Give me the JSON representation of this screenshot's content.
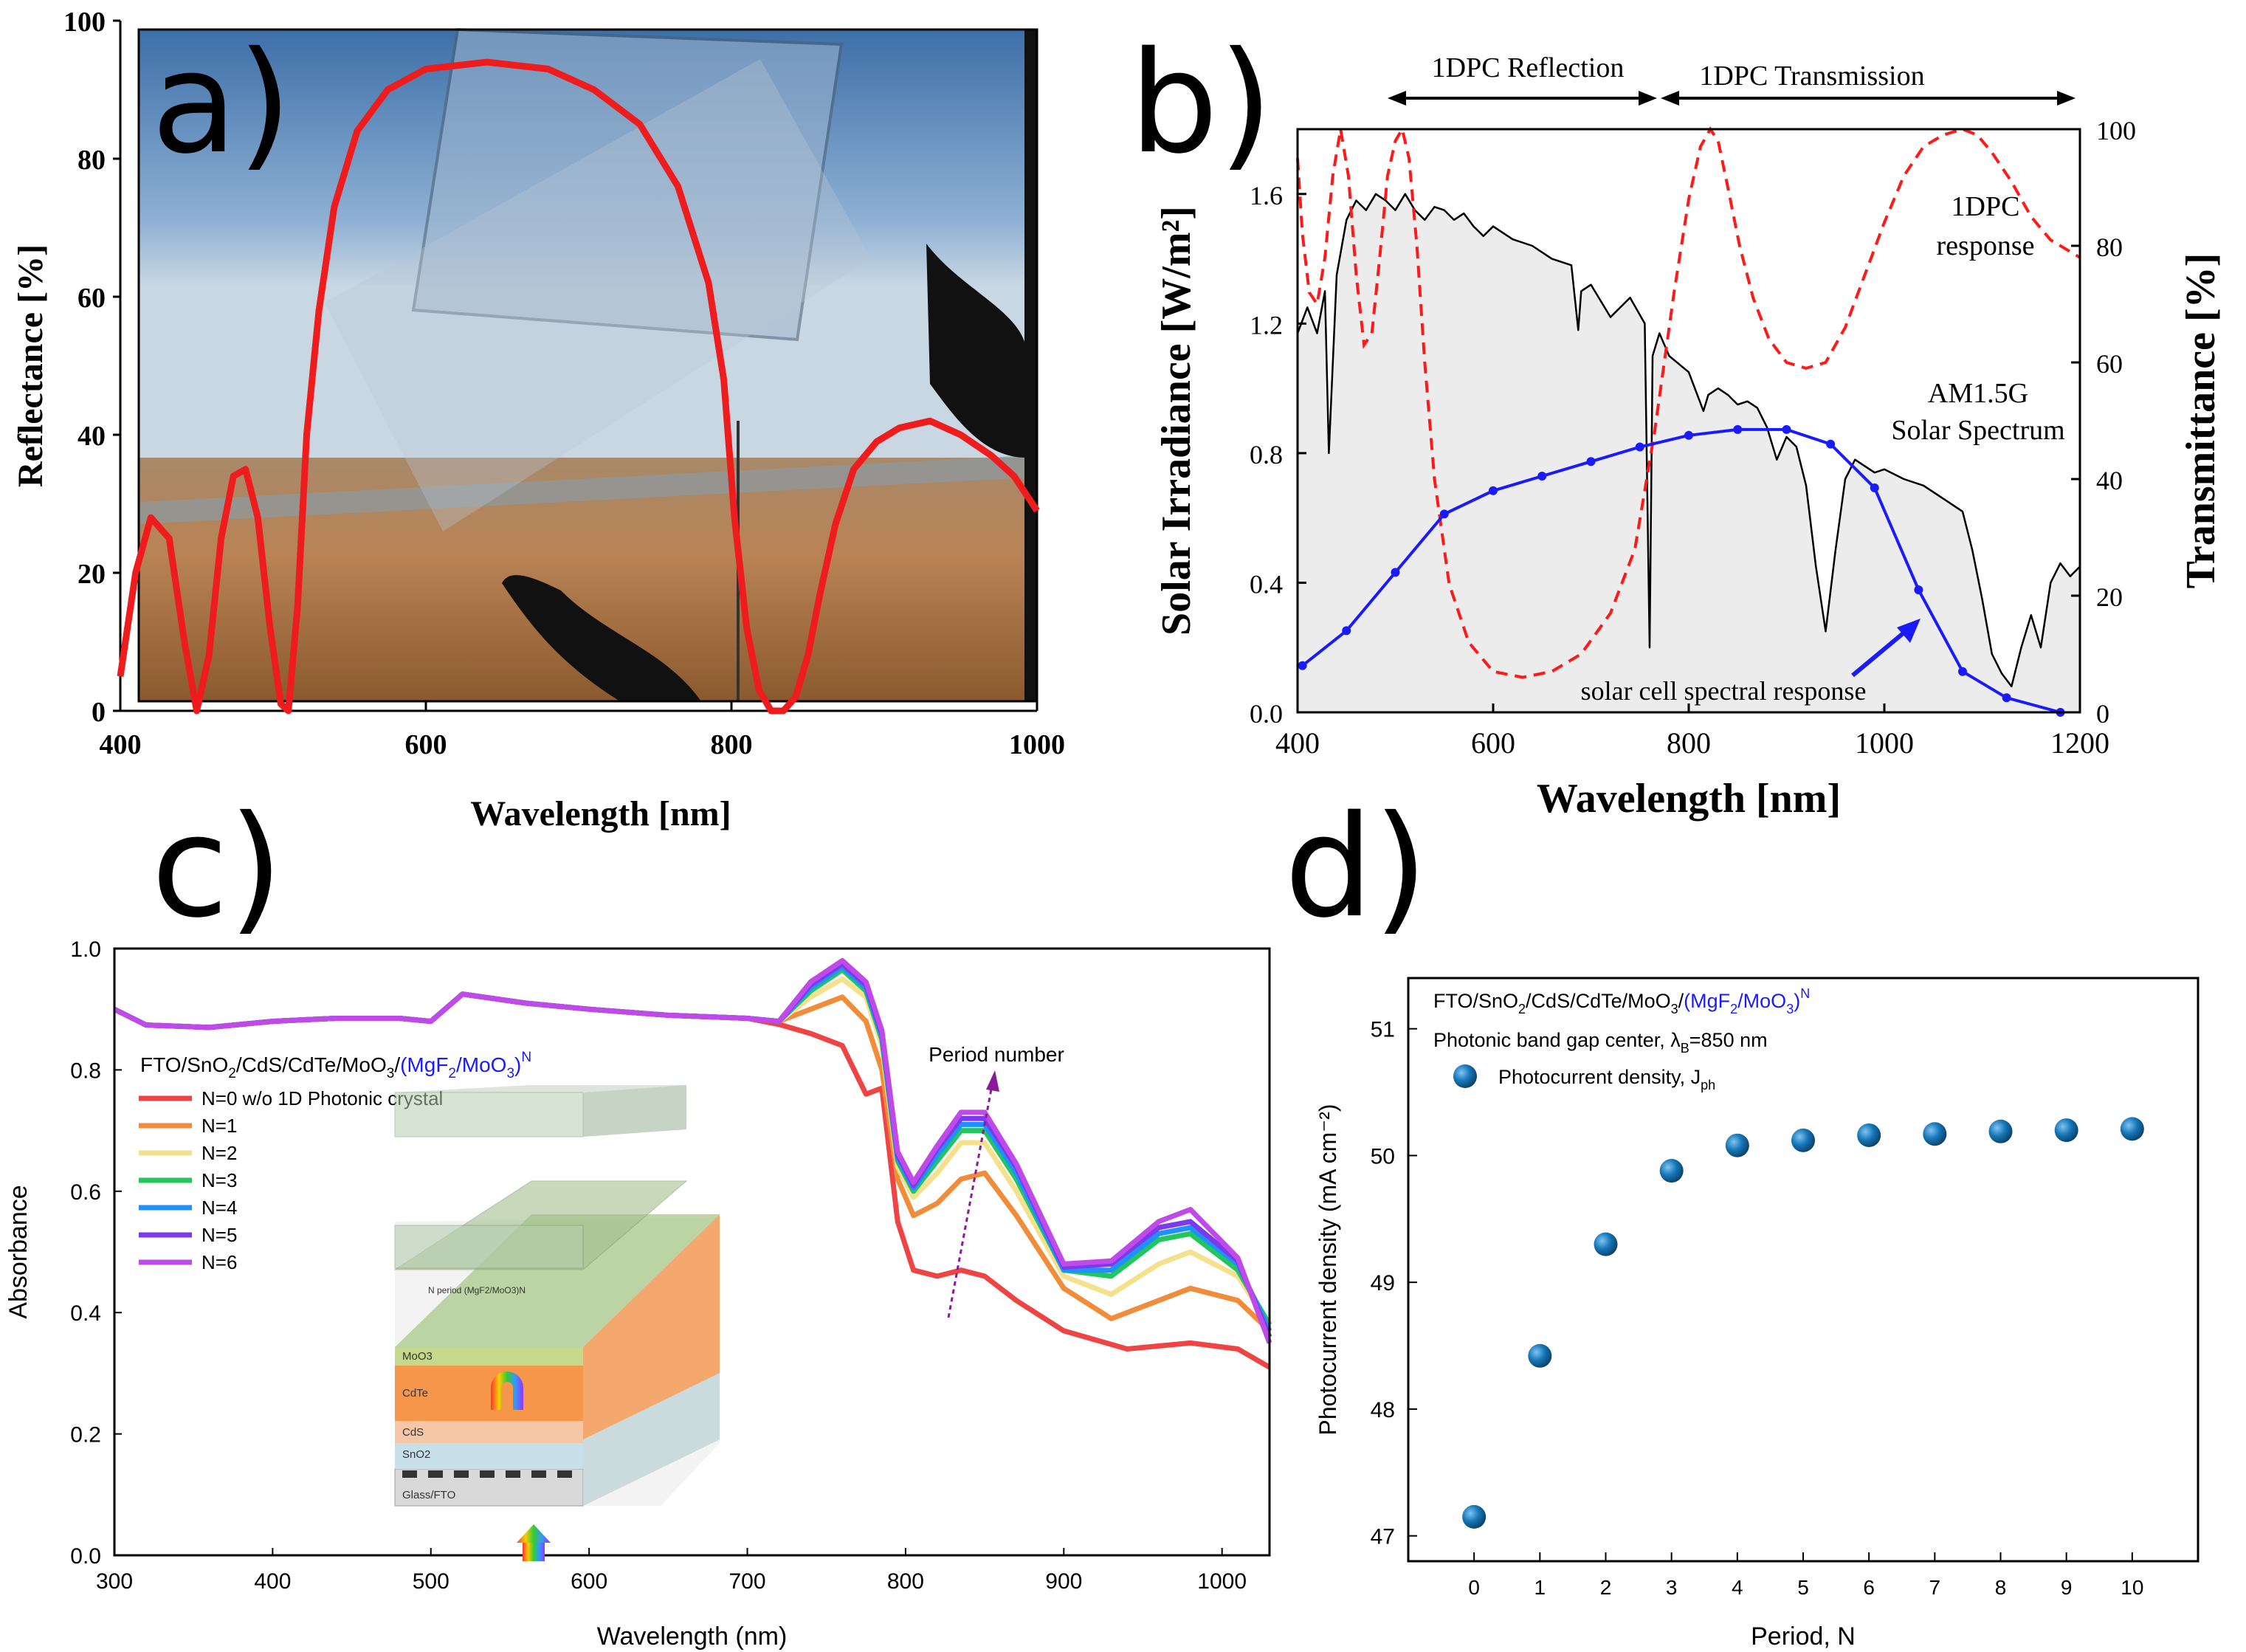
{
  "panels": {
    "a": {
      "label": "a)"
    },
    "b": {
      "label": "b)"
    },
    "c": {
      "label": "c)"
    },
    "d": {
      "label": "d)"
    }
  },
  "colors": {
    "red": "#ee1c1c",
    "blue": "#1a1aff",
    "dashed_red": "#ff1a1a",
    "marker_blue": "#1677b8",
    "photo_sky": "#5b89b8",
    "photo_ground": "#9b6a3c"
  },
  "chart_data": [
    {
      "id": "a",
      "type": "line",
      "title": "",
      "xlabel": "Wavelength [nm]",
      "ylabel": "Reflectance [%]",
      "xlim": [
        400,
        1000
      ],
      "ylim": [
        0,
        100
      ],
      "xticks": [
        "400",
        "600",
        "800",
        "1000"
      ],
      "yticks": [
        "0",
        "20",
        "40",
        "60",
        "80",
        "100"
      ],
      "background_image": "photo of transparent glass panel held against sky and plain",
      "series": [
        {
          "name": "Reflectance",
          "color": "#ee1c1c",
          "x": [
            400,
            410,
            420,
            432,
            442,
            450,
            458,
            466,
            474,
            482,
            490,
            498,
            505,
            510,
            516,
            522,
            530,
            540,
            555,
            575,
            600,
            640,
            680,
            710,
            740,
            765,
            785,
            795,
            802,
            810,
            818,
            826,
            834,
            842,
            850,
            858,
            868,
            880,
            895,
            910,
            930,
            950,
            970,
            985,
            1000
          ],
          "y": [
            5,
            20,
            28,
            25,
            10,
            0,
            8,
            25,
            34,
            35,
            28,
            12,
            1,
            0,
            15,
            40,
            58,
            73,
            84,
            90,
            93,
            94,
            93,
            90,
            85,
            76,
            62,
            48,
            28,
            12,
            3,
            0,
            0,
            2,
            8,
            17,
            27,
            35,
            39,
            41,
            42,
            40,
            37,
            34,
            29
          ]
        }
      ]
    },
    {
      "id": "b",
      "type": "line",
      "xlabel": "Wavelength [nm]",
      "ylabel": "Solar Irradiance [W/m²]",
      "ylabel_right": "Transmittance [%]",
      "xlim": [
        400,
        1200
      ],
      "ylim": [
        0,
        1.8
      ],
      "ylim_right": [
        0,
        100
      ],
      "xticks": [
        "400",
        "600",
        "800",
        "1000",
        "1200"
      ],
      "yticks": [
        "0.0",
        "0.4",
        "0.8",
        "1.2",
        "1.6"
      ],
      "yticks_right": [
        "0",
        "20",
        "40",
        "60",
        "80",
        "100"
      ],
      "annotations": {
        "reflection_arrow": "1DPC Reflection",
        "transmission_arrow": "1DPC Transmission",
        "response_line1": "1DPC",
        "response_line2": "response",
        "am_line1": "AM1.5G",
        "am_line2": "Solar Spectrum",
        "cell_response": "solar cell spectral response"
      },
      "series": [
        {
          "name": "AM1.5G Solar Spectrum",
          "color": "#000000",
          "axis": "left",
          "x": [
            400,
            410,
            420,
            428,
            432,
            440,
            450,
            460,
            470,
            480,
            490,
            500,
            510,
            520,
            530,
            540,
            550,
            560,
            570,
            580,
            590,
            600,
            620,
            640,
            660,
            680,
            687,
            690,
            700,
            720,
            740,
            755,
            760,
            763,
            770,
            780,
            800,
            815,
            820,
            830,
            840,
            850,
            860,
            870,
            880,
            890,
            900,
            910,
            920,
            930,
            940,
            950,
            960,
            970,
            980,
            990,
            1000,
            1020,
            1040,
            1060,
            1080,
            1090,
            1100,
            1110,
            1120,
            1130,
            1140,
            1150,
            1160,
            1170,
            1180,
            1190,
            1200
          ],
          "y": [
            1.17,
            1.25,
            1.17,
            1.3,
            0.8,
            1.35,
            1.52,
            1.58,
            1.55,
            1.6,
            1.58,
            1.55,
            1.6,
            1.55,
            1.52,
            1.56,
            1.55,
            1.52,
            1.54,
            1.5,
            1.47,
            1.5,
            1.46,
            1.44,
            1.4,
            1.38,
            1.18,
            1.3,
            1.32,
            1.22,
            1.28,
            1.2,
            0.2,
            1.1,
            1.17,
            1.1,
            1.05,
            0.93,
            0.98,
            1.0,
            0.98,
            0.95,
            0.96,
            0.94,
            0.88,
            0.78,
            0.85,
            0.82,
            0.7,
            0.45,
            0.25,
            0.5,
            0.72,
            0.78,
            0.76,
            0.74,
            0.75,
            0.72,
            0.7,
            0.66,
            0.62,
            0.5,
            0.35,
            0.18,
            0.12,
            0.08,
            0.2,
            0.3,
            0.2,
            0.4,
            0.46,
            0.42,
            0.45
          ]
        },
        {
          "name": "1DPC response",
          "color": "#ff1a1a",
          "style": "dashed",
          "axis": "right",
          "x": [
            400,
            405,
            412,
            420,
            428,
            436,
            444,
            452,
            460,
            468,
            476,
            484,
            492,
            500,
            507,
            514,
            522,
            530,
            540,
            555,
            575,
            600,
            630,
            660,
            690,
            720,
            745,
            765,
            785,
            800,
            812,
            822,
            830,
            840,
            852,
            866,
            882,
            900,
            920,
            940,
            960,
            980,
            1000,
            1020,
            1040,
            1060,
            1080,
            1095,
            1110,
            1130,
            1150,
            1170,
            1190,
            1200
          ],
          "y": [
            95,
            82,
            72,
            70,
            78,
            92,
            100,
            92,
            75,
            63,
            65,
            78,
            92,
            98,
            100,
            95,
            80,
            60,
            40,
            22,
            12,
            7,
            6,
            7,
            10,
            17,
            28,
            48,
            72,
            88,
            97,
            100,
            98,
            90,
            80,
            71,
            64,
            60,
            59,
            60,
            66,
            75,
            84,
            92,
            97,
            99,
            100,
            99,
            96,
            91,
            85,
            81,
            79,
            78
          ]
        },
        {
          "name": "solar cell spectral response",
          "color": "#1a1aff",
          "axis": "right",
          "markers": true,
          "x": [
            405,
            450,
            500,
            550,
            600,
            650,
            700,
            750,
            800,
            850,
            900,
            945,
            990,
            1035,
            1080,
            1125,
            1180
          ],
          "y": [
            8,
            14,
            24,
            34,
            38,
            40.5,
            43,
            45.5,
            47.5,
            48.5,
            48.5,
            46,
            38.5,
            21,
            7,
            2.5,
            0
          ]
        }
      ]
    },
    {
      "id": "c",
      "type": "line",
      "xlabel": "Wavelength (nm)",
      "ylabel": "Absorbance",
      "xlim": [
        300,
        1030
      ],
      "ylim": [
        0,
        1.0
      ],
      "xticks": [
        "300",
        "400",
        "500",
        "600",
        "700",
        "800",
        "900",
        "1000"
      ],
      "yticks": [
        "0.0",
        "0.2",
        "0.4",
        "0.6",
        "0.8",
        "1.0"
      ],
      "structure": "FTO/SnO2/CdS/CdTe/MoO3/(MgF2/MoO3)N",
      "struct_black": "FTO/SnO",
      "struct_sub1": "2",
      "struct_mid": "/CdS/CdTe/MoO",
      "struct_sub2": "3",
      "struct_slash": "/",
      "struct_blue_a": "(MgF",
      "struct_sub3": "2",
      "struct_blue_b": "/MoO",
      "struct_sub4": "3",
      "struct_blue_c": ")",
      "struct_sup": "N",
      "period_label": "Period number",
      "legend": [
        "N=0 w/o 1D Photonic crystal",
        "N=1",
        "N=2",
        "N=3",
        "N=4",
        "N=5",
        "N=6"
      ],
      "inset_labels": {
        "moo3": "MoO3",
        "cdte": "CdTe",
        "cds": "CdS",
        "sno2": "SnO2",
        "glass": "Glass/FTO",
        "nperiod": "N period (MgF2/MoO3)N"
      },
      "series": [
        {
          "name": "N=0",
          "color": "#ef4444",
          "x": [
            300,
            320,
            360,
            400,
            440,
            480,
            500,
            520,
            560,
            600,
            650,
            700,
            720,
            740,
            760,
            775,
            785,
            795,
            805,
            820,
            835,
            850,
            870,
            900,
            940,
            980,
            1010,
            1030
          ],
          "y": [
            0.9,
            0.874,
            0.87,
            0.88,
            0.885,
            0.885,
            0.88,
            0.925,
            0.91,
            0.9,
            0.89,
            0.885,
            0.875,
            0.86,
            0.84,
            0.76,
            0.77,
            0.55,
            0.47,
            0.46,
            0.47,
            0.46,
            0.42,
            0.37,
            0.34,
            0.35,
            0.34,
            0.31
          ]
        },
        {
          "name": "N=1",
          "color": "#f18c3a",
          "x": [
            300,
            320,
            360,
            400,
            440,
            480,
            500,
            520,
            560,
            600,
            650,
            700,
            720,
            740,
            760,
            775,
            785,
            795,
            805,
            820,
            835,
            850,
            870,
            900,
            930,
            960,
            980,
            1010,
            1030
          ],
          "y": [
            0.9,
            0.874,
            0.87,
            0.88,
            0.885,
            0.885,
            0.88,
            0.925,
            0.91,
            0.9,
            0.89,
            0.885,
            0.88,
            0.9,
            0.92,
            0.88,
            0.8,
            0.62,
            0.56,
            0.58,
            0.62,
            0.63,
            0.56,
            0.44,
            0.39,
            0.42,
            0.44,
            0.42,
            0.37
          ]
        },
        {
          "name": "N=2",
          "color": "#f5e08c",
          "x": [
            300,
            320,
            360,
            400,
            440,
            480,
            500,
            520,
            560,
            600,
            650,
            700,
            720,
            740,
            760,
            775,
            785,
            795,
            805,
            820,
            835,
            850,
            870,
            900,
            930,
            960,
            980,
            1010,
            1030
          ],
          "y": [
            0.9,
            0.874,
            0.87,
            0.88,
            0.885,
            0.885,
            0.88,
            0.925,
            0.91,
            0.9,
            0.89,
            0.885,
            0.88,
            0.92,
            0.95,
            0.92,
            0.84,
            0.64,
            0.59,
            0.63,
            0.68,
            0.68,
            0.6,
            0.46,
            0.43,
            0.48,
            0.5,
            0.46,
            0.38
          ]
        },
        {
          "name": "N=3",
          "color": "#22c55e",
          "x": [
            300,
            320,
            360,
            400,
            440,
            480,
            500,
            520,
            560,
            600,
            650,
            700,
            720,
            740,
            760,
            775,
            785,
            795,
            805,
            820,
            835,
            850,
            870,
            900,
            930,
            960,
            980,
            1010,
            1030
          ],
          "y": [
            0.9,
            0.874,
            0.87,
            0.88,
            0.885,
            0.885,
            0.88,
            0.925,
            0.91,
            0.9,
            0.89,
            0.885,
            0.88,
            0.93,
            0.965,
            0.93,
            0.85,
            0.65,
            0.6,
            0.65,
            0.7,
            0.7,
            0.62,
            0.47,
            0.46,
            0.52,
            0.53,
            0.47,
            0.38
          ]
        },
        {
          "name": "N=4",
          "color": "#1e90ff",
          "x": [
            300,
            320,
            360,
            400,
            440,
            480,
            500,
            520,
            560,
            600,
            650,
            700,
            720,
            740,
            760,
            775,
            785,
            795,
            805,
            820,
            835,
            850,
            870,
            900,
            930,
            960,
            980,
            1010,
            1030
          ],
          "y": [
            0.9,
            0.874,
            0.87,
            0.88,
            0.885,
            0.885,
            0.88,
            0.925,
            0.91,
            0.9,
            0.89,
            0.885,
            0.88,
            0.935,
            0.97,
            0.935,
            0.855,
            0.655,
            0.605,
            0.66,
            0.71,
            0.71,
            0.63,
            0.47,
            0.47,
            0.53,
            0.54,
            0.48,
            0.37
          ]
        },
        {
          "name": "N=5",
          "color": "#7c3aed",
          "x": [
            300,
            320,
            360,
            400,
            440,
            480,
            500,
            520,
            560,
            600,
            650,
            700,
            720,
            740,
            760,
            775,
            785,
            795,
            805,
            820,
            835,
            850,
            870,
            900,
            930,
            960,
            980,
            1010,
            1030
          ],
          "y": [
            0.9,
            0.874,
            0.87,
            0.88,
            0.885,
            0.885,
            0.88,
            0.925,
            0.91,
            0.9,
            0.89,
            0.885,
            0.88,
            0.94,
            0.975,
            0.94,
            0.86,
            0.66,
            0.61,
            0.67,
            0.72,
            0.72,
            0.64,
            0.475,
            0.48,
            0.54,
            0.55,
            0.485,
            0.36
          ]
        },
        {
          "name": "N=6",
          "color": "#c04ae8",
          "x": [
            300,
            320,
            360,
            400,
            440,
            480,
            500,
            520,
            560,
            600,
            650,
            700,
            720,
            740,
            760,
            775,
            785,
            795,
            805,
            820,
            835,
            850,
            870,
            900,
            930,
            960,
            980,
            1010,
            1030
          ],
          "y": [
            0.9,
            0.874,
            0.87,
            0.88,
            0.885,
            0.885,
            0.88,
            0.925,
            0.91,
            0.9,
            0.89,
            0.885,
            0.88,
            0.945,
            0.98,
            0.945,
            0.865,
            0.665,
            0.615,
            0.675,
            0.73,
            0.73,
            0.645,
            0.48,
            0.485,
            0.55,
            0.57,
            0.49,
            0.35
          ]
        }
      ]
    },
    {
      "id": "d",
      "type": "scatter",
      "xlabel": "Period, N",
      "ylabel": "Photocurrent density (mA cm⁻²)",
      "xlim": [
        -1,
        11
      ],
      "ylim": [
        46.8,
        51.4
      ],
      "xticks": [
        "0",
        "1",
        "2",
        "3",
        "4",
        "5",
        "6",
        "7",
        "8",
        "9",
        "10"
      ],
      "yticks": [
        "47",
        "48",
        "49",
        "50",
        "51"
      ],
      "struct_black": "FTO/SnO",
      "struct_sub1": "2",
      "struct_mid": "/CdS/CdTe/MoO",
      "struct_sub2": "3",
      "struct_slash": "/",
      "struct_blue_a": "(MgF",
      "struct_sub3": "2",
      "struct_blue_b": "/MoO",
      "struct_sub4": "3",
      "struct_blue_c": ")",
      "struct_sup": "N",
      "pbg_a": "Photonic band gap center, λ",
      "pbg_sub": "B",
      "pbg_b": "=850 nm",
      "legend_a": "Photocurrent density, J",
      "legend_sub": "ph",
      "series": [
        {
          "name": "Photocurrent density, Jph",
          "color": "#1677b8",
          "x": [
            0,
            1,
            2,
            3,
            4,
            5,
            6,
            7,
            8,
            9,
            10
          ],
          "y": [
            47.15,
            48.42,
            49.3,
            49.88,
            50.08,
            50.12,
            50.16,
            50.17,
            50.19,
            50.2,
            50.21
          ]
        }
      ]
    }
  ]
}
